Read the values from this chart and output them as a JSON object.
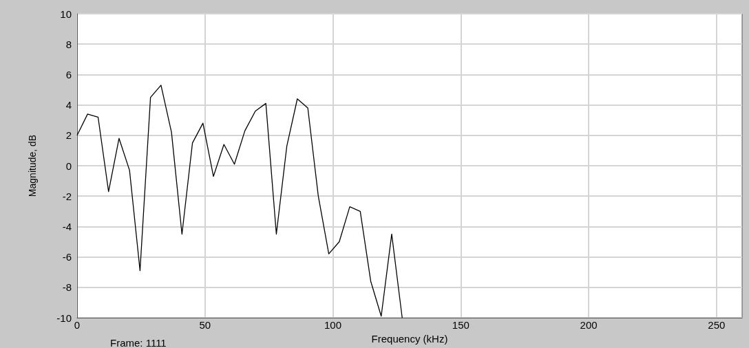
{
  "chart_data": {
    "type": "line",
    "xlabel": "Frequency (kHz)",
    "ylabel": "Magnitude, dB",
    "annotations": [
      "Frame: 1111"
    ],
    "x": [
      0,
      4.1,
      8.2,
      12.3,
      16.4,
      20.5,
      24.6,
      28.7,
      32.8,
      36.9,
      41,
      45.1,
      49.2,
      53.3,
      57.4,
      61.5,
      65.6,
      69.7,
      73.8,
      77.9,
      82,
      86.1,
      90.2,
      94.3,
      98.4,
      102.5,
      106.6,
      110.7,
      114.8,
      118.9,
      123,
      127.1
    ],
    "series": [
      {
        "color": "#000000",
        "values": [
          2.0,
          3.4,
          3.2,
          -1.7,
          1.8,
          -0.3,
          -6.9,
          4.5,
          5.3,
          2.2,
          -4.5,
          1.5,
          2.8,
          -0.7,
          1.4,
          0.1,
          2.3,
          3.6,
          4.1,
          -4.5,
          1.3,
          4.4,
          3.8,
          -2.0,
          -5.8,
          -5.0,
          -2.7,
          -3.0,
          -7.6,
          -9.9,
          -4.5,
          -10
        ]
      }
    ],
    "xlim": [
      0,
      260
    ],
    "xticks": [
      0,
      50,
      100,
      150,
      200,
      250
    ],
    "ylim": [
      -10,
      10
    ],
    "yticks": [
      -10,
      -8,
      -6,
      -4,
      -2,
      0,
      2,
      4,
      6,
      8,
      10
    ],
    "grid": true,
    "marker": "none",
    "line_style": "solid"
  }
}
